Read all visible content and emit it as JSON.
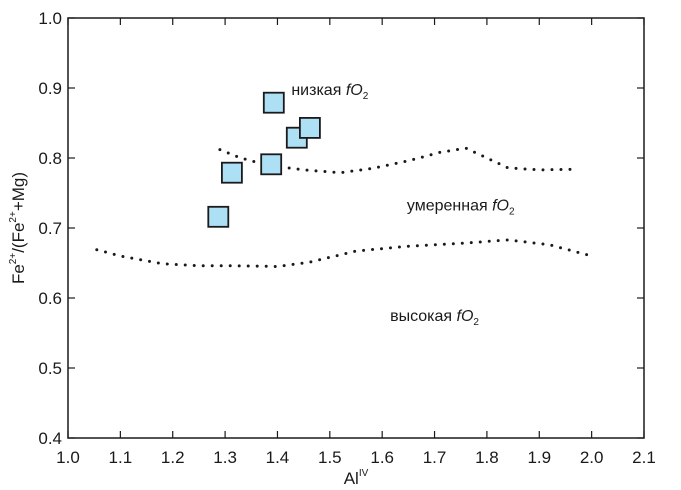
{
  "chart_data": {
    "type": "scatter",
    "xlabel": {
      "base": "Al",
      "sup": "IV"
    },
    "ylabel": "Fe2+/(Fe2+ +Mg)",
    "xlim": [
      1.0,
      2.1
    ],
    "ylim": [
      0.4,
      1.0
    ],
    "x_ticks": [
      "1.0",
      "1.1",
      "1.2",
      "1.3",
      "1.4",
      "1.5",
      "1.6",
      "1.7",
      "1.8",
      "1.9",
      "2.0",
      "2.1"
    ],
    "y_ticks": [
      "0.4",
      "0.5",
      "0.6",
      "0.7",
      "0.8",
      "0.9",
      "1.0"
    ],
    "grid": false,
    "points": [
      {
        "x": 1.287,
        "y": 0.716
      },
      {
        "x": 1.313,
        "y": 0.779
      },
      {
        "x": 1.388,
        "y": 0.791
      },
      {
        "x": 1.393,
        "y": 0.879
      },
      {
        "x": 1.437,
        "y": 0.829
      },
      {
        "x": 1.462,
        "y": 0.843
      }
    ],
    "point_style": {
      "marker": "square",
      "fill": "#aee0f5",
      "stroke": "#1a1a1a"
    },
    "boundaries": [
      {
        "style": "dotted",
        "points": [
          [
            1.29,
            0.812
          ],
          [
            1.33,
            0.8
          ],
          [
            1.38,
            0.79
          ],
          [
            1.45,
            0.783
          ],
          [
            1.52,
            0.779
          ],
          [
            1.58,
            0.785
          ],
          [
            1.65,
            0.796
          ],
          [
            1.71,
            0.808
          ],
          [
            1.76,
            0.814
          ],
          [
            1.8,
            0.8
          ],
          [
            1.84,
            0.786
          ],
          [
            1.9,
            0.783
          ],
          [
            1.97,
            0.784
          ]
        ]
      },
      {
        "style": "dotted",
        "points": [
          [
            1.055,
            0.669
          ],
          [
            1.1,
            0.66
          ],
          [
            1.18,
            0.649
          ],
          [
            1.25,
            0.646
          ],
          [
            1.32,
            0.646
          ],
          [
            1.4,
            0.645
          ],
          [
            1.46,
            0.651
          ],
          [
            1.55,
            0.667
          ],
          [
            1.65,
            0.674
          ],
          [
            1.75,
            0.678
          ],
          [
            1.84,
            0.683
          ],
          [
            1.92,
            0.676
          ],
          [
            2.0,
            0.66
          ]
        ]
      }
    ],
    "annotations": [
      {
        "text": "низкая ",
        "italic": "f",
        "base": "O",
        "sub": "2",
        "x": 1.5,
        "y": 0.89
      },
      {
        "text": "умеренная ",
        "italic": "f",
        "base": "O",
        "sub": "2",
        "x": 1.75,
        "y": 0.725
      },
      {
        "text": "высокая ",
        "italic": "f",
        "base": "O",
        "sub": "2",
        "x": 1.7,
        "y": 0.567
      }
    ]
  }
}
